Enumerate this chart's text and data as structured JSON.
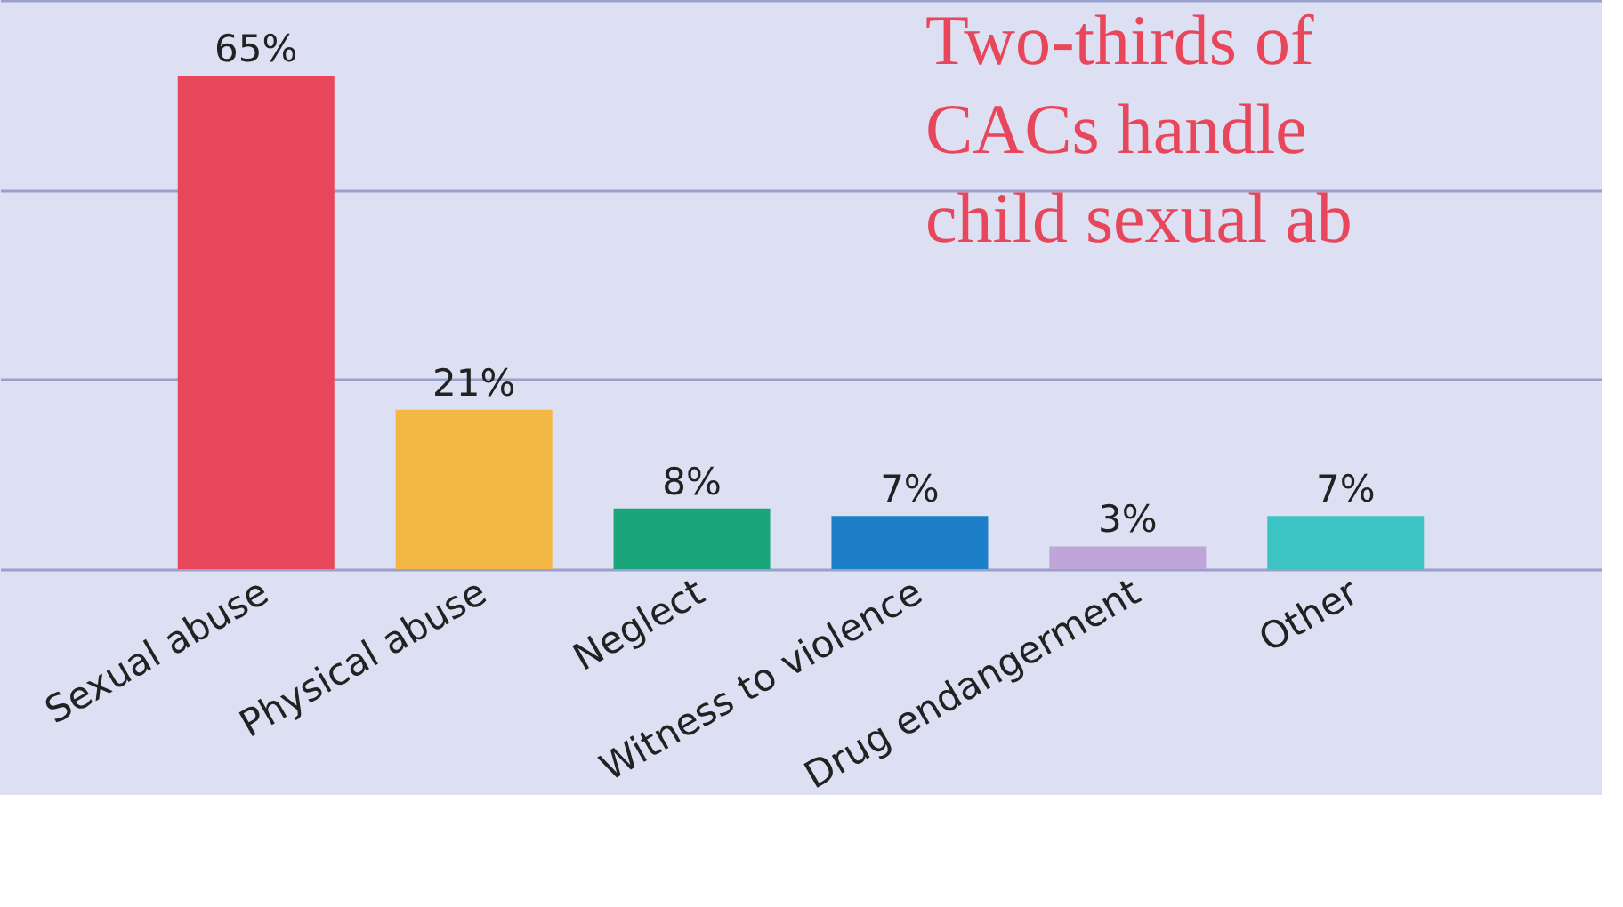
{
  "chart_data": {
    "type": "bar",
    "title": "Two-thirds of CACs handle child sexual ab",
    "categories": [
      "Sexual abuse",
      "Physical abuse",
      "Neglect",
      "Witness to violence",
      "Drug endangerment",
      "Other"
    ],
    "values": [
      65,
      21,
      8,
      7,
      3,
      7
    ],
    "colors": [
      "#e8465a",
      "#f2b843",
      "#1aa67a",
      "#1e7fc9",
      "#c0a6d8",
      "#3cc4c4"
    ],
    "value_labels": [
      "65%",
      "21%",
      "8%",
      "7%",
      "3%",
      "7%"
    ],
    "ylim": [
      0,
      75
    ],
    "yticks": [
      {
        "value": 0,
        "label": null
      },
      {
        "value": 25,
        "label": null
      },
      {
        "value": 50,
        "label": null
      },
      {
        "value": 75,
        "label": null
      }
    ],
    "grid": "y",
    "tick_labels": "x",
    "legend": false
  }
}
